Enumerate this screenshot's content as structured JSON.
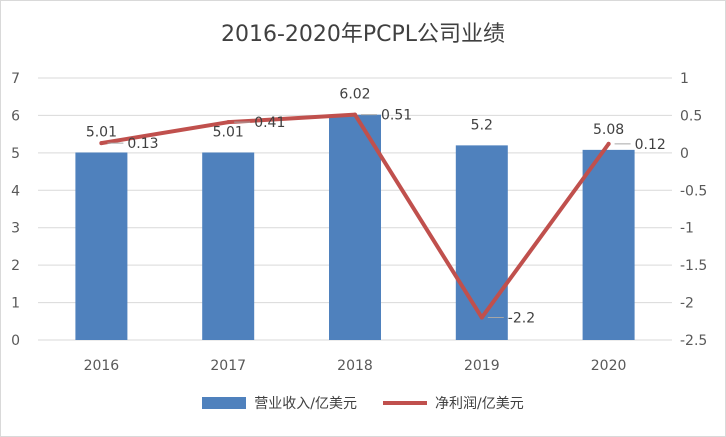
{
  "chart_data": {
    "type": "bar",
    "title": "2016-2020年PCPL公司业绩",
    "categories": [
      "2016",
      "2017",
      "2018",
      "2019",
      "2020"
    ],
    "series": [
      {
        "name": "营业收入/亿美元",
        "type": "bar",
        "axis": "left",
        "values": [
          5.01,
          5.01,
          6.02,
          5.2,
          5.08
        ],
        "color": "#4f81bd"
      },
      {
        "name": "净利润/亿美元",
        "type": "line",
        "axis": "right",
        "values": [
          0.13,
          0.41,
          0.51,
          -2.2,
          0.12
        ],
        "color": "#c0504d"
      }
    ],
    "y_left": {
      "min": 0,
      "max": 7,
      "step": 1,
      "ticks": [
        "0",
        "1",
        "2",
        "3",
        "4",
        "5",
        "6",
        "7"
      ]
    },
    "y_right": {
      "min": -2.5,
      "max": 1,
      "step": 0.5,
      "ticks": [
        "-2.5",
        "-2",
        "-1.5",
        "-1",
        "-0.5",
        "0",
        "0.5",
        "1"
      ]
    },
    "bar_labels": [
      "5.01",
      "5.01",
      "6.02",
      "5.2",
      "5.08"
    ],
    "line_labels": [
      "0.13",
      "0.41",
      "0.51",
      "-2.2",
      "0.12"
    ],
    "grid": true,
    "legend": "bottom"
  }
}
